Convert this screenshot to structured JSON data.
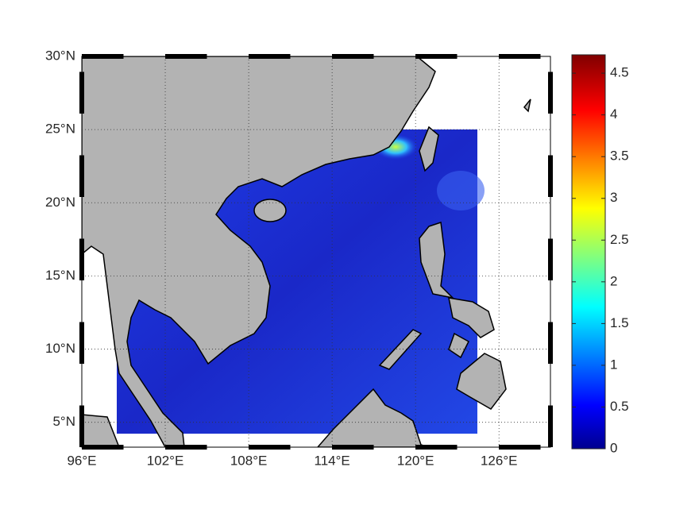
{
  "map": {
    "type": "map",
    "xlim": [
      96,
      129.7
    ],
    "ylim": [
      3.3,
      30
    ],
    "xticks": [
      {
        "value": 96,
        "label": "96°E"
      },
      {
        "value": 102,
        "label": "102°E"
      },
      {
        "value": 108,
        "label": "108°E"
      },
      {
        "value": 114,
        "label": "114°E"
      },
      {
        "value": 120,
        "label": "120°E"
      },
      {
        "value": 126,
        "label": "126°E"
      }
    ],
    "yticks": [
      {
        "value": 5,
        "label": "5°N"
      },
      {
        "value": 10,
        "label": "10°N"
      },
      {
        "value": 15,
        "label": "15°N"
      },
      {
        "value": 20,
        "label": "20°N"
      },
      {
        "value": 25,
        "label": "25°N"
      },
      {
        "value": 30,
        "label": "30°N"
      }
    ],
    "grid": true,
    "colorbar": {
      "lim": [
        0,
        4.72
      ],
      "ticks": [
        0,
        0.5,
        1,
        1.5,
        2,
        2.5,
        3,
        3.5,
        4,
        4.5
      ],
      "colormap": "jet"
    }
  }
}
